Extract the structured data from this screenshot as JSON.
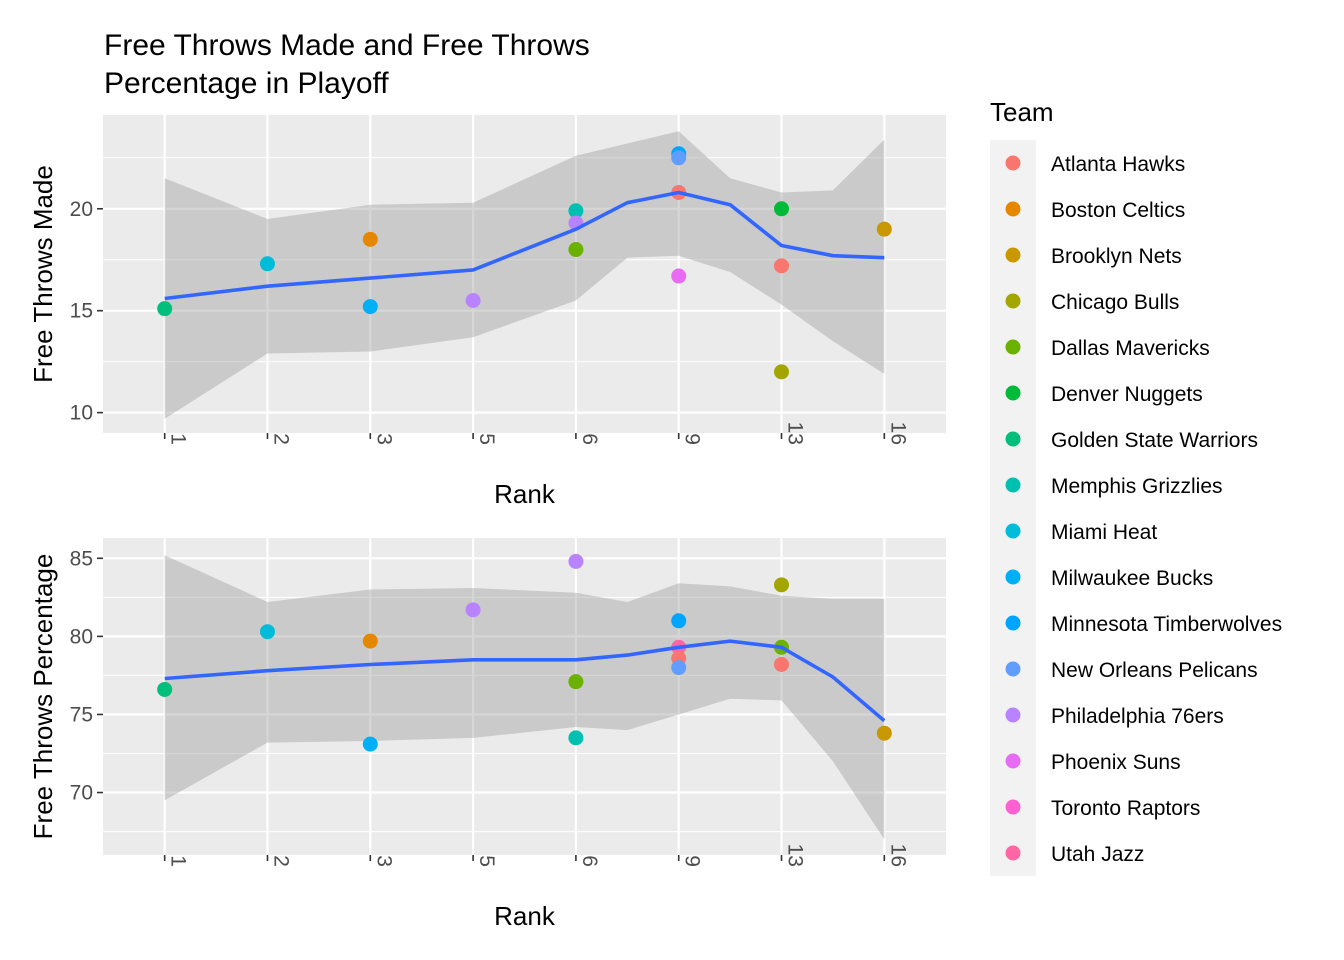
{
  "title_lines": [
    "Free Throws Made and Free Throws",
    "Percentage in Playoff"
  ],
  "legend": {
    "title": "Team",
    "position": "right",
    "items": [
      {
        "name": "Atlanta Hawks",
        "color": "#F8766D"
      },
      {
        "name": "Boston Celtics",
        "color": "#E58700"
      },
      {
        "name": "Brooklyn Nets",
        "color": "#C99800"
      },
      {
        "name": "Chicago Bulls",
        "color": "#A3A500"
      },
      {
        "name": "Dallas Mavericks",
        "color": "#6BB100"
      },
      {
        "name": "Denver Nuggets",
        "color": "#00BA38"
      },
      {
        "name": "Golden State Warriors",
        "color": "#00BF7D"
      },
      {
        "name": "Memphis Grizzlies",
        "color": "#00C0AF"
      },
      {
        "name": "Miami Heat",
        "color": "#00BCD8"
      },
      {
        "name": "Milwaukee Bucks",
        "color": "#00B0F6"
      },
      {
        "name": "Minnesota Timberwolves",
        "color": "#00A5FF"
      },
      {
        "name": "New Orleans Pelicans",
        "color": "#619CFF"
      },
      {
        "name": "Philadelphia 76ers",
        "color": "#B983FF"
      },
      {
        "name": "Phoenix Suns",
        "color": "#E76BF3"
      },
      {
        "name": "Toronto Raptors",
        "color": "#FD61D1"
      },
      {
        "name": "Utah Jazz",
        "color": "#FF67A4"
      }
    ]
  },
  "chart_data": [
    {
      "type": "scatter",
      "title": "Free Throws Made and Free Throws Percentage in Playoff",
      "xlabel": "Rank",
      "ylabel": "Free Throws Made",
      "categories": [
        "1",
        "2",
        "3",
        "5",
        "6",
        "9",
        "13",
        "16"
      ],
      "ylim": [
        9,
        24.6
      ],
      "yticks": [
        10,
        15,
        20
      ],
      "grid": true,
      "points": [
        {
          "team": "Golden State Warriors",
          "x": "1",
          "y": 15.1
        },
        {
          "team": "Miami Heat",
          "x": "2",
          "y": 17.3
        },
        {
          "team": "Boston Celtics",
          "x": "3",
          "y": 18.5
        },
        {
          "team": "Milwaukee Bucks",
          "x": "3",
          "y": 15.2
        },
        {
          "team": "Philadelphia 76ers",
          "x": "5",
          "y": 15.5
        },
        {
          "team": "Memphis Grizzlies",
          "x": "6",
          "y": 19.9
        },
        {
          "team": "Philadelphia 76ers",
          "x": "6",
          "y": 19.3
        },
        {
          "team": "Dallas Mavericks",
          "x": "6",
          "y": 18.0
        },
        {
          "team": "Minnesota Timberwolves",
          "x": "9",
          "y": 22.7
        },
        {
          "team": "New Orleans Pelicans",
          "x": "9",
          "y": 22.5
        },
        {
          "team": "Atlanta Hawks",
          "x": "9",
          "y": 20.8
        },
        {
          "team": "Phoenix Suns",
          "x": "9",
          "y": 16.7
        },
        {
          "team": "Denver Nuggets",
          "x": "13",
          "y": 20.0
        },
        {
          "team": "Atlanta Hawks",
          "x": "13",
          "y": 17.2
        },
        {
          "team": "Chicago Bulls",
          "x": "13",
          "y": 12.0
        },
        {
          "team": "Brooklyn Nets",
          "x": "16",
          "y": 19.0
        }
      ],
      "smooth": {
        "x": [
          1,
          2,
          3,
          4,
          5,
          5.5,
          6,
          6.5,
          7,
          7.5,
          8
        ],
        "y": [
          15.6,
          16.2,
          16.6,
          17.0,
          19.0,
          20.3,
          20.8,
          20.2,
          18.2,
          17.7,
          17.6
        ],
        "lower": [
          9.7,
          12.9,
          13.0,
          13.7,
          15.5,
          17.6,
          17.7,
          16.9,
          15.3,
          13.5,
          11.9
        ],
        "upper": [
          21.5,
          19.5,
          20.2,
          20.3,
          22.6,
          23.2,
          23.8,
          21.5,
          20.8,
          20.9,
          23.4
        ]
      }
    },
    {
      "type": "scatter",
      "xlabel": "Rank",
      "ylabel": "Free Throws Percentage",
      "categories": [
        "1",
        "2",
        "3",
        "5",
        "6",
        "9",
        "13",
        "16"
      ],
      "ylim": [
        66,
        86.3
      ],
      "yticks": [
        70,
        75,
        80,
        85
      ],
      "grid": true,
      "points": [
        {
          "team": "Golden State Warriors",
          "x": "1",
          "y": 76.6
        },
        {
          "team": "Miami Heat",
          "x": "2",
          "y": 80.3
        },
        {
          "team": "Boston Celtics",
          "x": "3",
          "y": 79.7
        },
        {
          "team": "Milwaukee Bucks",
          "x": "3",
          "y": 73.1
        },
        {
          "team": "Philadelphia 76ers",
          "x": "5",
          "y": 81.7
        },
        {
          "team": "Philadelphia 76ers",
          "x": "6",
          "y": 84.8
        },
        {
          "team": "Dallas Mavericks",
          "x": "6",
          "y": 77.1
        },
        {
          "team": "Memphis Grizzlies",
          "x": "6",
          "y": 73.5
        },
        {
          "team": "Minnesota Timberwolves",
          "x": "9",
          "y": 81.0
        },
        {
          "team": "Utah Jazz",
          "x": "9",
          "y": 79.3
        },
        {
          "team": "Atlanta Hawks",
          "x": "9",
          "y": 78.6
        },
        {
          "team": "New Orleans Pelicans",
          "x": "9",
          "y": 78.0
        },
        {
          "team": "Chicago Bulls",
          "x": "13",
          "y": 83.3
        },
        {
          "team": "Dallas Mavericks",
          "x": "13",
          "y": 79.3
        },
        {
          "team": "Atlanta Hawks",
          "x": "13",
          "y": 78.2
        },
        {
          "team": "Brooklyn Nets",
          "x": "16",
          "y": 73.8
        }
      ],
      "smooth": {
        "x": [
          1,
          2,
          3,
          4,
          5,
          5.5,
          6,
          6.5,
          7,
          7.5,
          8
        ],
        "y": [
          77.3,
          77.8,
          78.2,
          78.5,
          78.5,
          78.8,
          79.3,
          79.7,
          79.3,
          77.4,
          74.6
        ],
        "lower": [
          69.5,
          73.2,
          73.3,
          73.5,
          74.2,
          74.0,
          75.0,
          76.0,
          75.9,
          72.0,
          67.0
        ],
        "upper": [
          85.2,
          82.2,
          83.0,
          83.1,
          82.8,
          82.2,
          83.4,
          83.2,
          82.6,
          82.4,
          82.4
        ]
      }
    }
  ]
}
